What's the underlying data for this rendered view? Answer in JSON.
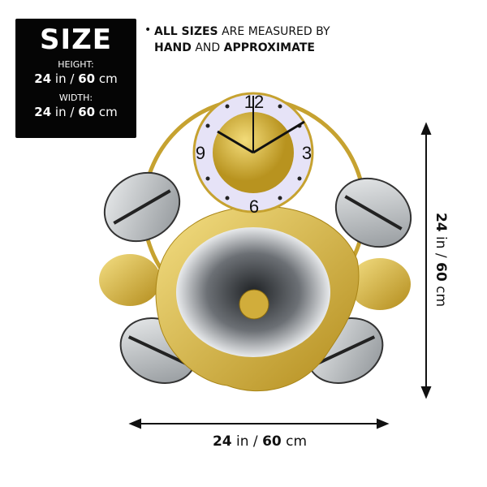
{
  "size_box": {
    "title": "SIZE",
    "height_label": "HEIGHT:",
    "height_in": "24",
    "height_in_unit": "in /",
    "height_cm": "60",
    "height_cm_unit": "cm",
    "width_label": "WIDTH:",
    "width_in": "24",
    "width_in_unit": "in /",
    "width_cm": "60",
    "width_cm_unit": "cm"
  },
  "note": {
    "bullet": "•",
    "bold1": "ALL SIZES",
    "text1": " ARE MEASURED BY",
    "bold2": "HAND",
    "text2": " AND ",
    "bold3": "APPROXIMATE"
  },
  "clock": {
    "numerals": [
      "12",
      "3",
      "6",
      "9"
    ]
  },
  "dimensions": {
    "width_in": "24",
    "width_in_unit": " in / ",
    "width_cm": "60",
    "width_cm_unit": " cm",
    "height_in": "24",
    "height_in_unit": " in / ",
    "height_cm": "60",
    "height_cm_unit": " cm"
  },
  "colors": {
    "gold": "#d4b23a",
    "silver": "#cfd2d4",
    "dark": "#2a2d30",
    "face": "#e6e3f7"
  }
}
